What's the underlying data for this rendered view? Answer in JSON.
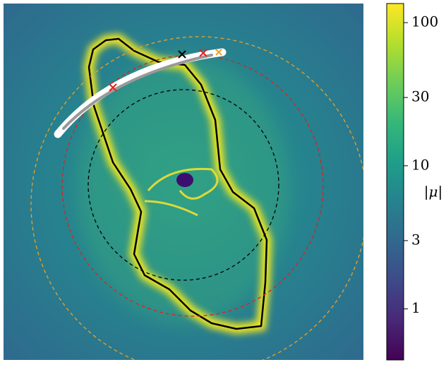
{
  "chart_data": {
    "type": "image",
    "colorbar": {
      "label": "|μ|",
      "clim": [
        0.44,
        136
      ],
      "cticks": [
        1,
        3,
        10,
        30,
        100
      ],
      "log": true,
      "colormap": "viridis"
    }
  }
}
